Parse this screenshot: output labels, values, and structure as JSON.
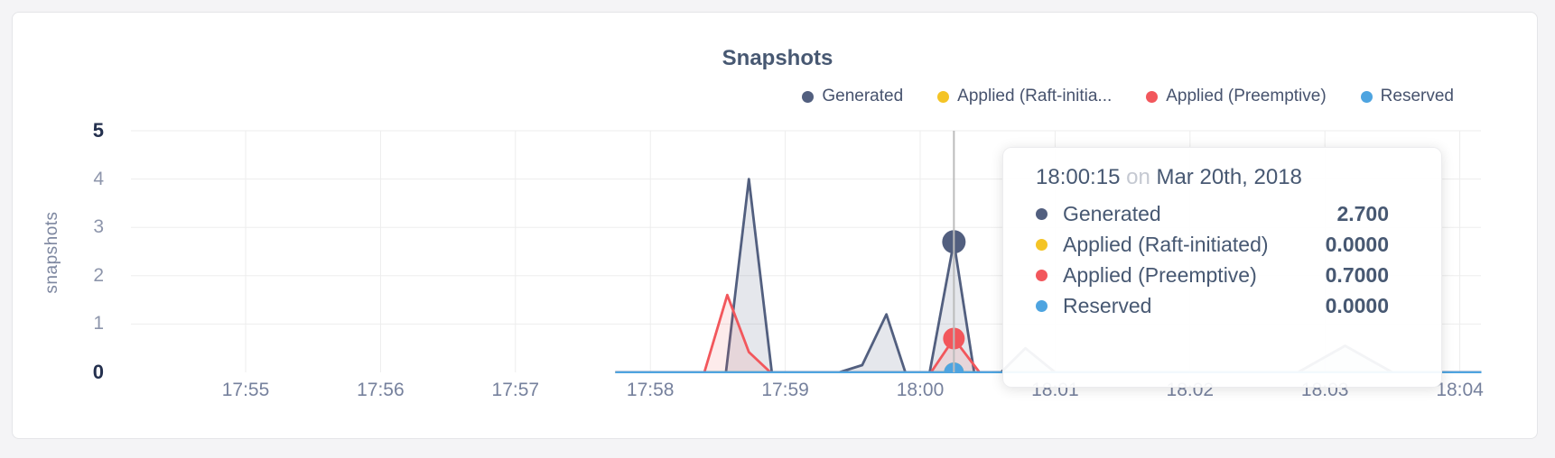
{
  "header": {
    "title": "Snapshots"
  },
  "legend": {
    "items": [
      {
        "id": "generated",
        "label": "Generated",
        "color": "#525f7f"
      },
      {
        "id": "applied-raft",
        "label": "Applied (Raft-initia...",
        "color": "#f4c426"
      },
      {
        "id": "applied-preemptive",
        "label": "Applied (Preemptive)",
        "color": "#f2575c"
      },
      {
        "id": "reserved",
        "label": "Reserved",
        "color": "#4ea4e0"
      }
    ]
  },
  "y_axis": {
    "title": "snapshots",
    "ticks": [
      {
        "label": "0",
        "value": 0,
        "bold": true
      },
      {
        "label": "1",
        "value": 1,
        "bold": false
      },
      {
        "label": "2",
        "value": 2,
        "bold": false
      },
      {
        "label": "3",
        "value": 3,
        "bold": false
      },
      {
        "label": "4",
        "value": 4,
        "bold": false
      },
      {
        "label": "5",
        "value": 5,
        "bold": true
      }
    ]
  },
  "x_axis": {
    "ticks": [
      {
        "label": "17:55",
        "t": 0
      },
      {
        "label": "17:56",
        "t": 1
      },
      {
        "label": "17:57",
        "t": 2
      },
      {
        "label": "17:58",
        "t": 3
      },
      {
        "label": "17:59",
        "t": 4
      },
      {
        "label": "18:00",
        "t": 5
      },
      {
        "label": "18:01",
        "t": 6
      },
      {
        "label": "18:02",
        "t": 7
      },
      {
        "label": "18:03",
        "t": 8
      },
      {
        "label": "18:04",
        "t": 9
      }
    ]
  },
  "tooltip": {
    "time": "18:00:15",
    "preposition": "on",
    "date": "Mar 20th, 2018",
    "rows": [
      {
        "label": "Generated",
        "value": "2.700",
        "color": "#525f7f"
      },
      {
        "label": "Applied (Raft-initiated)",
        "value": "0.0000",
        "color": "#f4c426"
      },
      {
        "label": "Applied (Preemptive)",
        "value": "0.7000",
        "color": "#f2575c"
      },
      {
        "label": "Reserved",
        "value": "0.0000",
        "color": "#4ea4e0"
      }
    ]
  },
  "chart_data": {
    "type": "area",
    "title": "Snapshots",
    "ylabel": "snapshots",
    "ylim": [
      0,
      5
    ],
    "grid": true,
    "legend_position": "top-right",
    "x_unit": "minutes since 17:55",
    "x_tick_labels": [
      "17:55",
      "17:56",
      "17:57",
      "17:58",
      "17:59",
      "18:00",
      "18:01",
      "18:02",
      "18:03",
      "18:04"
    ],
    "hover": {
      "t": 5.25,
      "time_label": "18:00:15 on Mar 20th, 2018",
      "line_color": "#bcbcbc"
    },
    "grid_color": "#ededed",
    "series": [
      {
        "id": "generated",
        "name": "Generated",
        "color": "#525f7f",
        "fill": "rgba(82,95,127,0.15)",
        "hover_value": 2.7,
        "hover_radius": 13,
        "points": [
          [
            2.74,
            0
          ],
          [
            3.56,
            0
          ],
          [
            3.73,
            4.0
          ],
          [
            3.9,
            0
          ],
          [
            4.4,
            0
          ],
          [
            4.57,
            0.15
          ],
          [
            4.75,
            1.2
          ],
          [
            4.89,
            0
          ],
          [
            5.07,
            0
          ],
          [
            5.25,
            2.7
          ],
          [
            5.4,
            0
          ],
          [
            5.6,
            0
          ],
          [
            5.78,
            0.5
          ],
          [
            6.0,
            0
          ],
          [
            7.8,
            0
          ],
          [
            8.15,
            0.55
          ],
          [
            8.5,
            0
          ],
          [
            9.16,
            0
          ]
        ]
      },
      {
        "id": "applied-raft",
        "name": "Applied (Raft-initiated)",
        "color": "#f4c426",
        "fill": "none",
        "hover_value": 0,
        "hover_radius": 11,
        "points": [
          [
            2.74,
            0
          ],
          [
            9.16,
            0
          ]
        ]
      },
      {
        "id": "applied-preemptive",
        "name": "Applied (Preemptive)",
        "color": "#f2575c",
        "fill": "rgba(242,87,92,0.12)",
        "hover_value": 0.7,
        "hover_radius": 12,
        "points": [
          [
            2.74,
            0
          ],
          [
            3.4,
            0
          ],
          [
            3.57,
            1.6
          ],
          [
            3.73,
            0.42
          ],
          [
            3.89,
            0
          ],
          [
            5.08,
            0
          ],
          [
            5.25,
            0.7
          ],
          [
            5.44,
            0
          ],
          [
            9.16,
            0
          ]
        ]
      },
      {
        "id": "reserved",
        "name": "Reserved",
        "color": "#4ea4e0",
        "fill": "none",
        "hover_value": 0,
        "hover_radius": 11,
        "points": [
          [
            2.74,
            0
          ],
          [
            9.16,
            0
          ]
        ]
      }
    ]
  }
}
